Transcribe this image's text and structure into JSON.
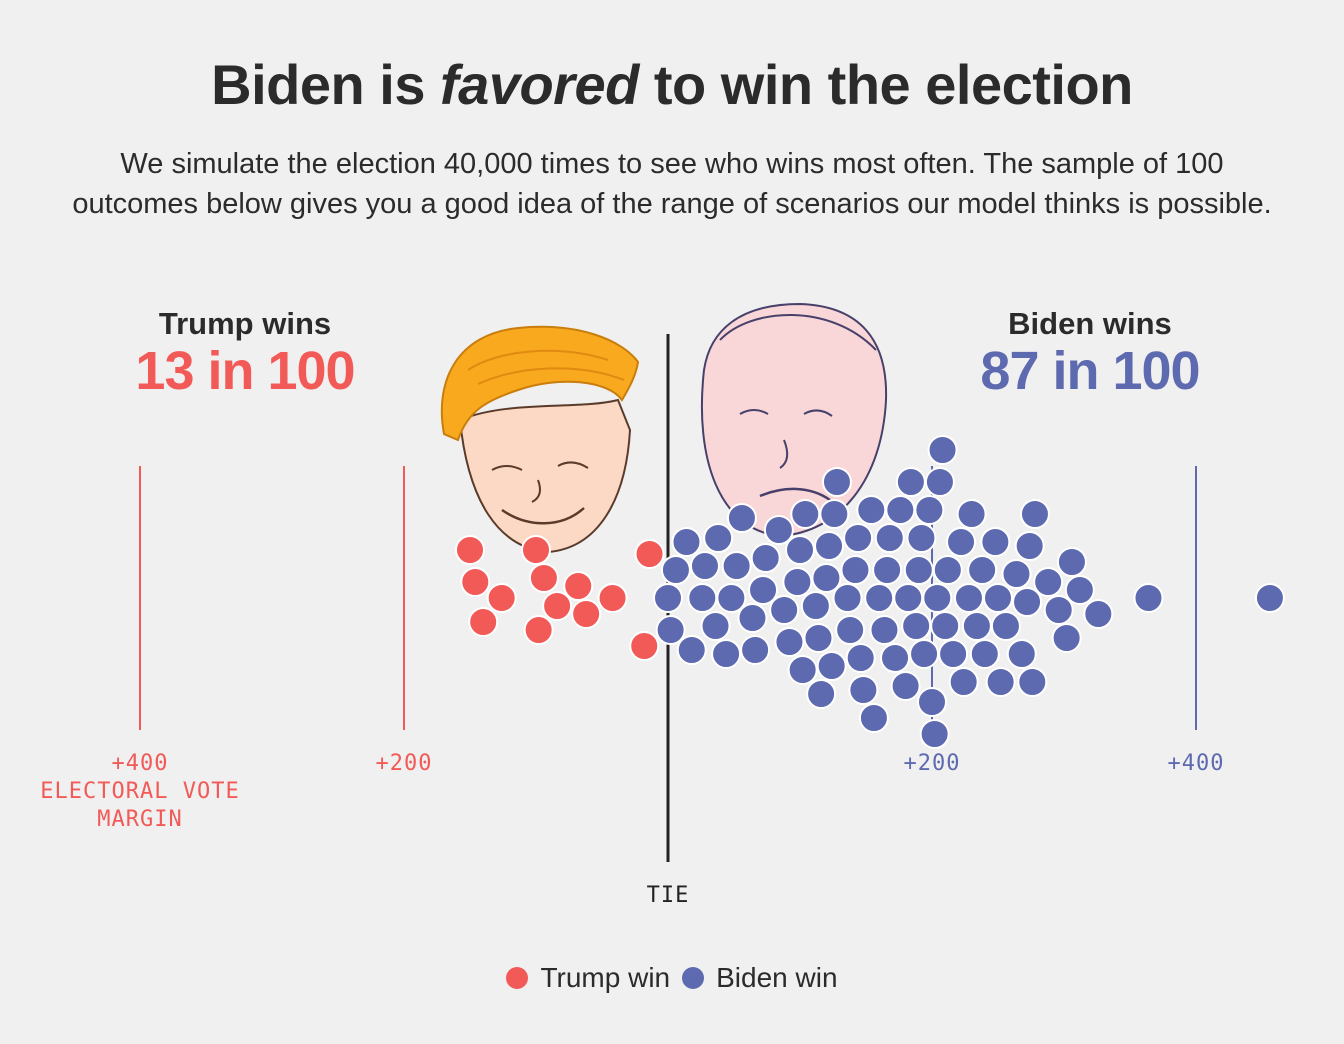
{
  "header": {
    "title_pre": "Biden is ",
    "title_em": "favored",
    "title_post": " to win the election",
    "subtitle": "We simulate the election 40,000 times to see who wins most often. The sample of 100 outcomes below gives you a good idea of the range of scenarios our model thinks is possible."
  },
  "trump": {
    "label": "Trump wins",
    "odds": "13 in 100"
  },
  "biden": {
    "label": "Biden wins",
    "odds": "87 in 100"
  },
  "colors": {
    "trump": "#f25a57",
    "biden": "#5e6ab0",
    "tie": "#222222"
  },
  "portraits": {
    "trump": "trump-portrait",
    "biden": "biden-portrait"
  },
  "chart_data": {
    "type": "scatter",
    "xlabel": "ELECTORAL VOTE MARGIN",
    "xlim": [
      -420,
      420
    ],
    "tie_label": "TIE",
    "ticks": [
      {
        "value": -400,
        "label": "+400",
        "side": "trump"
      },
      {
        "value": -200,
        "label": "+200",
        "side": "trump"
      },
      {
        "value": 200,
        "label": "+200",
        "side": "biden"
      },
      {
        "value": 400,
        "label": "+400",
        "side": "biden"
      }
    ],
    "series": [
      {
        "name": "Trump win",
        "values": [
          -150,
          -146,
          -140,
          -126,
          -100,
          -98,
          -94,
          -84,
          -68,
          -62,
          -42,
          -18,
          -14
        ]
      },
      {
        "name": "Biden win",
        "values": [
          0,
          2,
          6,
          14,
          18,
          26,
          28,
          36,
          38,
          44,
          48,
          52,
          56,
          64,
          66,
          72,
          74,
          84,
          88,
          92,
          98,
          100,
          102,
          104,
          112,
          114,
          116,
          120,
          122,
          124,
          126,
          128,
          136,
          138,
          142,
          144,
          146,
          148,
          154,
          156,
          160,
          164,
          166,
          168,
          172,
          176,
          180,
          182,
          184,
          188,
          190,
          192,
          194,
          198,
          200,
          202,
          204,
          206,
          208,
          210,
          212,
          216,
          222,
          224,
          228,
          230,
          234,
          238,
          240,
          248,
          250,
          252,
          256,
          264,
          268,
          272,
          274,
          276,
          278,
          288,
          296,
          302,
          306,
          312,
          326,
          364,
          456
        ]
      }
    ]
  },
  "legend": {
    "items": [
      {
        "label": "Trump win",
        "color": "#f25a57"
      },
      {
        "label": "Biden win",
        "color": "#5e6ab0"
      }
    ]
  }
}
